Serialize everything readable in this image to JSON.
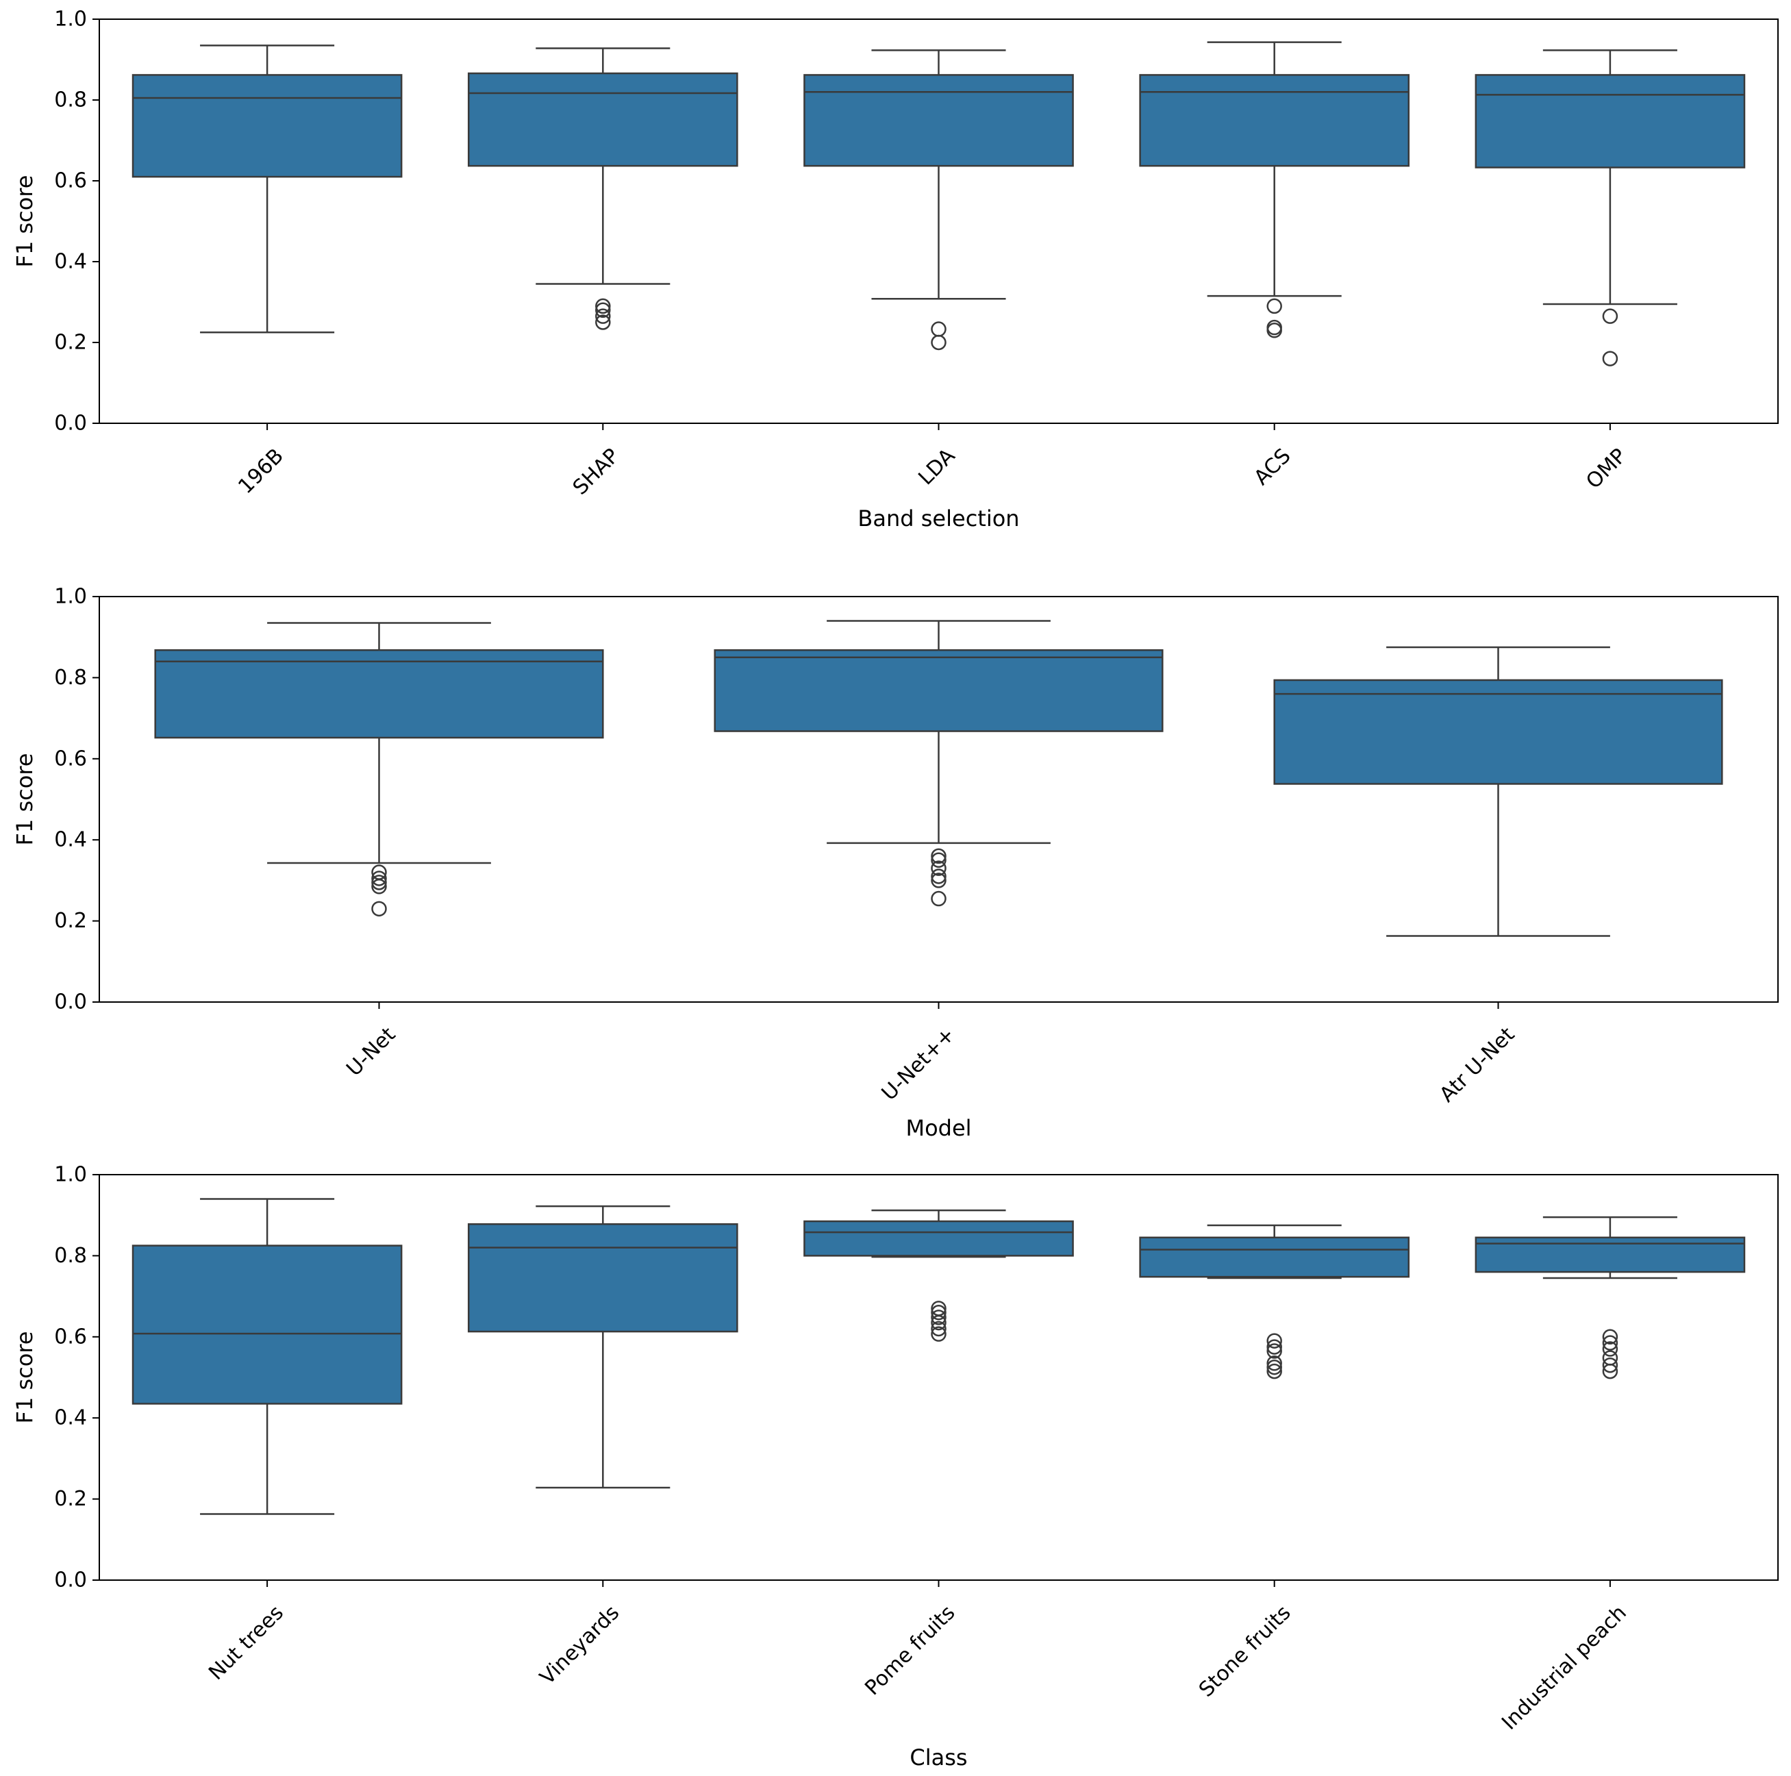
{
  "chart_data": [
    {
      "type": "box",
      "xlabel": "Band selection",
      "ylabel": "F1 score",
      "ylim": [
        0.0,
        1.0
      ],
      "yticks": [
        "0.0",
        "0.2",
        "0.4",
        "0.6",
        "0.8",
        "1.0"
      ],
      "color": "#3274a1",
      "categories": [
        "196B",
        "SHAP",
        "LDA",
        "ACS",
        "OMP"
      ],
      "boxes": [
        {
          "q1": 0.61,
          "median": 0.805,
          "q3": 0.862,
          "whisker_low": 0.225,
          "whisker_high": 0.935,
          "fliers": []
        },
        {
          "q1": 0.637,
          "median": 0.817,
          "q3": 0.866,
          "whisker_low": 0.345,
          "whisker_high": 0.928,
          "fliers": [
            0.29,
            0.28,
            0.265,
            0.25
          ]
        },
        {
          "q1": 0.637,
          "median": 0.82,
          "q3": 0.862,
          "whisker_low": 0.308,
          "whisker_high": 0.923,
          "fliers": [
            0.233,
            0.2
          ]
        },
        {
          "q1": 0.637,
          "median": 0.82,
          "q3": 0.862,
          "whisker_low": 0.315,
          "whisker_high": 0.943,
          "fliers": [
            0.29,
            0.237,
            0.23
          ]
        },
        {
          "q1": 0.633,
          "median": 0.813,
          "q3": 0.862,
          "whisker_low": 0.295,
          "whisker_high": 0.923,
          "fliers": [
            0.265,
            0.16
          ]
        }
      ]
    },
    {
      "type": "box",
      "xlabel": "Model",
      "ylabel": "F1 score",
      "ylim": [
        0.0,
        1.0
      ],
      "yticks": [
        "0.0",
        "0.2",
        "0.4",
        "0.6",
        "0.8",
        "1.0"
      ],
      "color": "#3274a1",
      "categories": [
        "U-Net",
        "U-Net++",
        "Atr U-Net"
      ],
      "boxes": [
        {
          "q1": 0.652,
          "median": 0.84,
          "q3": 0.868,
          "whisker_low": 0.343,
          "whisker_high": 0.935,
          "fliers": [
            0.32,
            0.305,
            0.295,
            0.285,
            0.23
          ]
        },
        {
          "q1": 0.668,
          "median": 0.85,
          "q3": 0.868,
          "whisker_low": 0.392,
          "whisker_high": 0.94,
          "fliers": [
            0.36,
            0.35,
            0.33,
            0.31,
            0.3,
            0.255
          ]
        },
        {
          "q1": 0.538,
          "median": 0.76,
          "q3": 0.794,
          "whisker_low": 0.163,
          "whisker_high": 0.875,
          "fliers": []
        }
      ]
    },
    {
      "type": "box",
      "xlabel": "Class",
      "ylabel": "F1 score",
      "ylim": [
        0.0,
        1.0
      ],
      "yticks": [
        "0.0",
        "0.2",
        "0.4",
        "0.6",
        "0.8",
        "1.0"
      ],
      "color": "#3274a1",
      "categories": [
        "Nut trees",
        "Vineyards",
        "Pome fruits",
        "Stone fruits",
        "Industrial peach"
      ],
      "boxes": [
        {
          "q1": 0.435,
          "median": 0.608,
          "q3": 0.825,
          "whisker_low": 0.163,
          "whisker_high": 0.94,
          "fliers": []
        },
        {
          "q1": 0.613,
          "median": 0.82,
          "q3": 0.878,
          "whisker_low": 0.228,
          "whisker_high": 0.922,
          "fliers": []
        },
        {
          "q1": 0.8,
          "median": 0.858,
          "q3": 0.885,
          "whisker_low": 0.797,
          "whisker_high": 0.912,
          "fliers": [
            0.67,
            0.66,
            0.648,
            0.635,
            0.62,
            0.607
          ]
        },
        {
          "q1": 0.748,
          "median": 0.815,
          "q3": 0.845,
          "whisker_low": 0.745,
          "whisker_high": 0.875,
          "fliers": [
            0.59,
            0.575,
            0.565,
            0.535,
            0.525,
            0.515
          ]
        },
        {
          "q1": 0.76,
          "median": 0.83,
          "q3": 0.845,
          "whisker_low": 0.745,
          "whisker_high": 0.895,
          "fliers": [
            0.6,
            0.585,
            0.57,
            0.548,
            0.53,
            0.515
          ]
        }
      ]
    }
  ]
}
